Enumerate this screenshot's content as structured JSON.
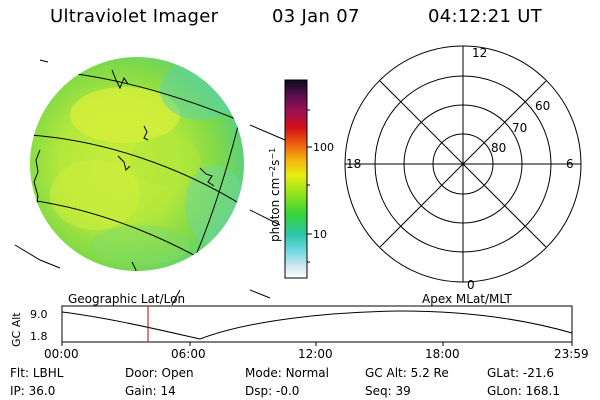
{
  "header": {
    "instrument": "Ultraviolet Imager",
    "date": "03 Jan 07",
    "time": "04:12:21 UT"
  },
  "colorbar": {
    "unit_label": "photon cm",
    "unit_sup1": "−2",
    "unit_mid": "s",
    "unit_sup2": "−1",
    "ticks": [
      "100",
      "10"
    ]
  },
  "polar": {
    "mlt_top": "12",
    "mlt_bottom": "0",
    "mlt_left": "18",
    "mlt_right": "6",
    "lat_labels": [
      "60",
      "70",
      "80"
    ]
  },
  "orbit": {
    "left_title": "Geographic Lat/Lon",
    "right_title": "Apex MLat/MLT",
    "y_axis_label": "GC Alt",
    "y_ticks": [
      "9.0",
      "1.8"
    ],
    "x_ticks": [
      "00:00",
      "06:00",
      "12:00",
      "18:00",
      "23:59"
    ],
    "current_marker_time": "04:12"
  },
  "info": {
    "row1": [
      {
        "label": "Flt:",
        "value": "LBHL"
      },
      {
        "label": "Door:",
        "value": "Open"
      },
      {
        "label": "Mode:",
        "value": "Normal"
      },
      {
        "label": "GC Alt:",
        "value": "5.2 Re"
      },
      {
        "label": "GLat:",
        "value": "-21.6"
      }
    ],
    "row2": [
      {
        "label": "IP:",
        "value": "36.0"
      },
      {
        "label": "Gain:",
        "value": "14"
      },
      {
        "label": "Dsp:",
        "value": "-0.0"
      },
      {
        "label": "Seq:",
        "value": "39"
      },
      {
        "label": "GLon:",
        "value": "168.1"
      }
    ]
  },
  "colors": {
    "marker": "#cc0000",
    "disk_base": "#b9ea3a"
  }
}
